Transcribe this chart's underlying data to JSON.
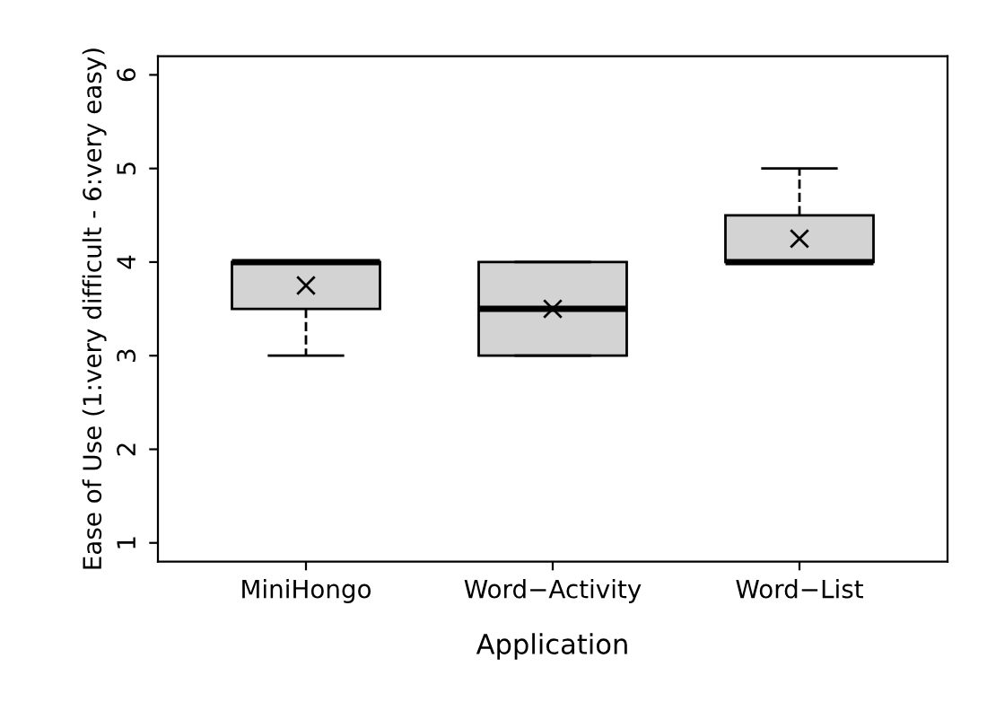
{
  "chart_data": {
    "type": "box",
    "xlabel": "Application",
    "ylabel": "Ease of Use (1:very difficult - 6:very easy)",
    "categories": [
      "MiniHongo",
      "Word−Activity",
      "Word−List"
    ],
    "color": "#d3d3d3",
    "boxes": [
      {
        "low": 3,
        "q1": 3.5,
        "median": 4,
        "q3": 4,
        "high": 4,
        "mean": 3.75
      },
      {
        "low": 3,
        "q1": 3,
        "median": 3.5,
        "q3": 4,
        "high": 4,
        "mean": 3.5
      },
      {
        "low": 4,
        "q1": 4,
        "median": 4,
        "q3": 4.5,
        "high": 5,
        "mean": 4.25
      }
    ],
    "marker": "cross",
    "ylim": [
      0.8,
      6.2
    ],
    "yticks": [
      1,
      2,
      3,
      4,
      5,
      6
    ],
    "grid": false
  }
}
